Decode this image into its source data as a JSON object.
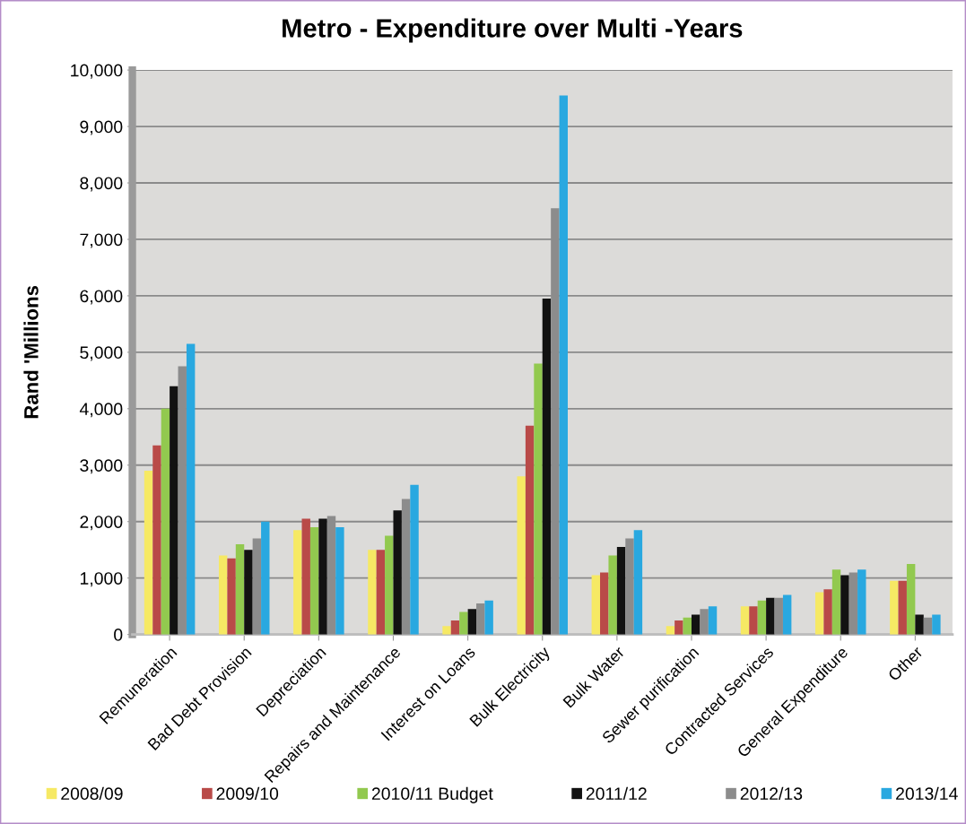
{
  "chart_data": {
    "type": "bar",
    "title": "Metro - Expenditure over Multi -Years",
    "ylabel": "Rand 'Millions",
    "categories": [
      "Remuneration",
      "Bad Debt Provision",
      "Depreciation",
      "Repairs and Maintenance",
      "Interest on Loans",
      "Bulk Electricity",
      "Bulk Water",
      "Sewer purification",
      "Contracted Services",
      "General Expenditure",
      "Other"
    ],
    "series": [
      {
        "name": "2008/09",
        "color": "#f6e964",
        "values": [
          2900,
          1400,
          1850,
          1500,
          150,
          2800,
          1050,
          150,
          500,
          750,
          950
        ]
      },
      {
        "name": "2009/10",
        "color": "#b94a48",
        "values": [
          3350,
          1350,
          2050,
          1500,
          250,
          3700,
          1100,
          250,
          500,
          800,
          950
        ]
      },
      {
        "name": "2010/11 Budget",
        "color": "#92c94f",
        "values": [
          4000,
          1600,
          1900,
          1750,
          400,
          4800,
          1400,
          300,
          600,
          1150,
          1250
        ]
      },
      {
        "name": "2011/12",
        "color": "#121212",
        "values": [
          4400,
          1500,
          2050,
          2200,
          450,
          5950,
          1550,
          350,
          650,
          1050,
          350
        ]
      },
      {
        "name": "2012/13",
        "color": "#8c8c8c",
        "values": [
          4750,
          1700,
          2100,
          2400,
          550,
          7550,
          1700,
          450,
          650,
          1100,
          300
        ]
      },
      {
        "name": "2013/14",
        "color": "#29a8e0",
        "values": [
          5150,
          2000,
          1900,
          2650,
          600,
          9550,
          1850,
          500,
          700,
          1150,
          350
        ]
      }
    ],
    "ylim": [
      0,
      10000
    ],
    "yticks": [
      0,
      {
        "value": 1000,
        "label": "1,000"
      },
      {
        "value": 2000,
        "label": "2,000"
      },
      {
        "value": 3000,
        "label": "3,000"
      },
      {
        "value": 4000,
        "label": "4,000"
      },
      {
        "value": 5000,
        "label": "5,000"
      },
      {
        "value": 6000,
        "label": "6,000"
      },
      {
        "value": 7000,
        "label": "7,000"
      },
      {
        "value": 8000,
        "label": "8,000"
      },
      {
        "value": 9000,
        "label": "9,000"
      },
      {
        "value": 10000,
        "label": "10,000"
      }
    ],
    "grid": "y",
    "legend": "bottom"
  }
}
